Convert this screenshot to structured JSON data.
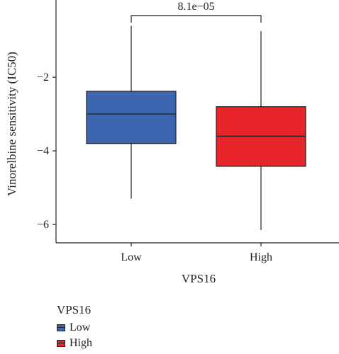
{
  "chart_data": {
    "type": "box",
    "ylabel": "Vinorelbine sensitivity (IC50)",
    "xlabel": "VPS16",
    "ylim": [
      -6.5,
      0.1
    ],
    "yticks": [
      -2,
      -4,
      -6
    ],
    "categories": [
      "Low",
      "High"
    ],
    "boxes": [
      {
        "name": "Low",
        "color": "#3c66b0",
        "whisker_low": -5.3,
        "q1": -3.8,
        "median": -3.0,
        "q3": -2.38,
        "whisker_high": -0.6
      },
      {
        "name": "High",
        "color": "#e8242b",
        "whisker_low": -6.15,
        "q1": -4.42,
        "median": -3.6,
        "q3": -2.8,
        "whisker_high": -0.75
      }
    ],
    "annotation": {
      "text": "8.1e−05"
    },
    "grid": false,
    "legend": {
      "title": "VPS16",
      "placement": "bottom-left",
      "items": [
        {
          "label": "Low",
          "color": "#3c66b0"
        },
        {
          "label": "High",
          "color": "#e8242b"
        }
      ]
    }
  }
}
